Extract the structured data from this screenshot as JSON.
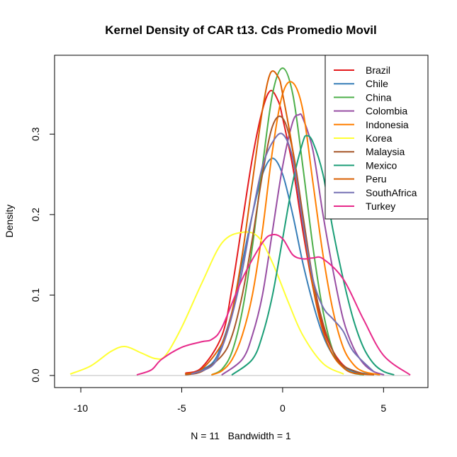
{
  "chart_data": {
    "type": "line",
    "title": "Kernel Density of CAR t13. Cds Promedio Movil",
    "xlabel": "N = 11   Bandwidth = 1",
    "ylabel": "Density",
    "xlim": [
      -11.3,
      7.2
    ],
    "ylim": [
      -0.015,
      0.398
    ],
    "x_ticks": [
      -10,
      -5,
      0,
      5
    ],
    "x_tick_labels": [
      "-10",
      "-5",
      "0",
      "5"
    ],
    "y_ticks": [
      0.0,
      0.1,
      0.2,
      0.3
    ],
    "y_tick_labels": [
      "0.0",
      "0.1",
      "0.2",
      "0.3"
    ],
    "legend_position": "top-right",
    "series": [
      {
        "name": "Brazil",
        "color": "#E41A1C",
        "x": [
          -4.8,
          -4,
          -3,
          -2.5,
          -2,
          -1.5,
          -1,
          -0.6,
          -0.2,
          0,
          0.5,
          1,
          1.5,
          2,
          2.5,
          3,
          3.5,
          4
        ],
        "y": [
          0.003,
          0.01,
          0.05,
          0.11,
          0.19,
          0.27,
          0.33,
          0.354,
          0.34,
          0.32,
          0.26,
          0.18,
          0.11,
          0.06,
          0.03,
          0.013,
          0.005,
          0.001
        ]
      },
      {
        "name": "Chile",
        "color": "#377EB8",
        "x": [
          -4.5,
          -3.5,
          -3,
          -2.5,
          -2,
          -1.5,
          -1,
          -0.5,
          0,
          0.5,
          1,
          1.5,
          2,
          2.5,
          3,
          3.5,
          4.5
        ],
        "y": [
          0.002,
          0.015,
          0.04,
          0.08,
          0.14,
          0.2,
          0.25,
          0.27,
          0.25,
          0.2,
          0.14,
          0.09,
          0.05,
          0.025,
          0.012,
          0.005,
          0.001
        ]
      },
      {
        "name": "China",
        "color": "#4DAF4A",
        "x": [
          -3.5,
          -3,
          -2.5,
          -2,
          -1.5,
          -1,
          -0.5,
          0,
          0.5,
          1,
          1.5,
          2,
          2.5,
          3,
          3.5,
          4
        ],
        "y": [
          0.001,
          0.008,
          0.03,
          0.08,
          0.16,
          0.26,
          0.35,
          0.382,
          0.35,
          0.26,
          0.16,
          0.08,
          0.03,
          0.01,
          0.003,
          0.001
        ]
      },
      {
        "name": "Colombia",
        "color": "#984EA3",
        "x": [
          -3,
          -2,
          -1.5,
          -1,
          -0.5,
          0,
          0.5,
          0.8,
          1,
          1.5,
          2,
          2.5,
          3,
          3.5,
          4,
          4.5,
          5
        ],
        "y": [
          0.001,
          0.02,
          0.05,
          0.1,
          0.18,
          0.26,
          0.315,
          0.324,
          0.32,
          0.28,
          0.2,
          0.13,
          0.07,
          0.035,
          0.015,
          0.005,
          0.001
        ]
      },
      {
        "name": "Indonesia",
        "color": "#FF7F00",
        "x": [
          -3.5,
          -3,
          -2.5,
          -2,
          -1.5,
          -1,
          -0.5,
          0,
          0.5,
          1,
          1.5,
          2,
          2.5,
          3,
          3.5,
          4,
          4.8
        ],
        "y": [
          0.001,
          0.006,
          0.02,
          0.05,
          0.1,
          0.18,
          0.28,
          0.35,
          0.364,
          0.33,
          0.24,
          0.15,
          0.08,
          0.035,
          0.014,
          0.005,
          0.001
        ]
      },
      {
        "name": "Korea",
        "color": "#FFFF33",
        "x": [
          -10.5,
          -9.5,
          -8.5,
          -7.8,
          -7,
          -6.3,
          -5.8,
          -5,
          -4,
          -3,
          -2,
          -1.2,
          -0.5,
          0.3,
          1,
          2,
          3
        ],
        "y": [
          0.002,
          0.012,
          0.03,
          0.036,
          0.028,
          0.021,
          0.025,
          0.06,
          0.115,
          0.165,
          0.178,
          0.172,
          0.14,
          0.09,
          0.05,
          0.015,
          0.002
        ]
      },
      {
        "name": "Malaysia",
        "color": "#A65628",
        "x": [
          -4.8,
          -4,
          -3,
          -2.5,
          -2,
          -1.5,
          -1,
          -0.5,
          0,
          0.5,
          1,
          1.5,
          2,
          2.5,
          3,
          4
        ],
        "y": [
          0.001,
          0.005,
          0.025,
          0.05,
          0.1,
          0.17,
          0.25,
          0.31,
          0.32,
          0.28,
          0.2,
          0.12,
          0.065,
          0.03,
          0.012,
          0.002
        ]
      },
      {
        "name": "Mexico",
        "color": "#1B9E77",
        "x": [
          -2.5,
          -1.5,
          -1,
          -0.5,
          0,
          0.5,
          1,
          1.2,
          1.5,
          2,
          2.5,
          3,
          3.5,
          4,
          4.5,
          5,
          5.5
        ],
        "y": [
          0.001,
          0.02,
          0.05,
          0.1,
          0.17,
          0.24,
          0.29,
          0.298,
          0.29,
          0.25,
          0.18,
          0.12,
          0.07,
          0.035,
          0.015,
          0.005,
          0.001
        ]
      },
      {
        "name": "Peru",
        "color": "#D95F02",
        "x": [
          -4.8,
          -4,
          -3,
          -2.5,
          -2,
          -1.5,
          -1,
          -0.6,
          -0.2,
          0,
          0.5,
          1,
          1.5,
          2,
          2.5,
          3,
          3.5,
          4.5
        ],
        "y": [
          0.002,
          0.008,
          0.04,
          0.08,
          0.15,
          0.24,
          0.33,
          0.376,
          0.37,
          0.35,
          0.28,
          0.19,
          0.11,
          0.055,
          0.025,
          0.01,
          0.003,
          0.001
        ]
      },
      {
        "name": "SouthAfrica",
        "color": "#7570B3",
        "x": [
          -4.5,
          -3.5,
          -3,
          -2.5,
          -2,
          -1.5,
          -1,
          -0.5,
          0,
          0.5,
          1,
          1.5,
          2,
          2.5,
          3,
          3.5,
          4.5
        ],
        "y": [
          0.002,
          0.012,
          0.035,
          0.075,
          0.13,
          0.2,
          0.26,
          0.29,
          0.3,
          0.27,
          0.19,
          0.12,
          0.085,
          0.07,
          0.055,
          0.03,
          0.005
        ]
      },
      {
        "name": "Turkey",
        "color": "#E7298A",
        "x": [
          -7.2,
          -6.5,
          -6,
          -5,
          -4,
          -3.5,
          -3,
          -2,
          -1,
          -0.5,
          0,
          0.5,
          1,
          1.5,
          2,
          3,
          4,
          5,
          6.3
        ],
        "y": [
          0.001,
          0.007,
          0.02,
          0.035,
          0.042,
          0.045,
          0.06,
          0.12,
          0.165,
          0.175,
          0.17,
          0.15,
          0.145,
          0.146,
          0.145,
          0.12,
          0.07,
          0.025,
          0.001
        ]
      }
    ]
  }
}
